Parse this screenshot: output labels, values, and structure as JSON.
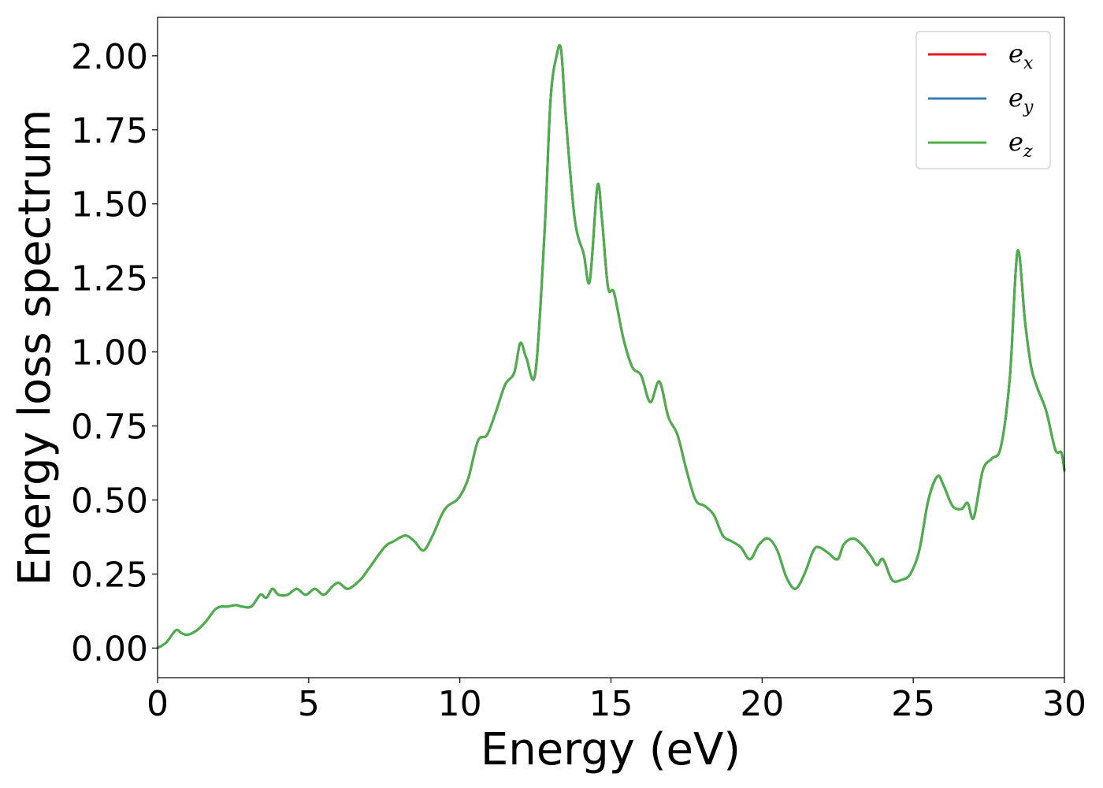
{
  "chart_data": {
    "type": "line",
    "title": "",
    "xlabel": "Energy (eV)",
    "ylabel": "Energy loss spectrum",
    "xlim": [
      0,
      30
    ],
    "ylim": [
      -0.1,
      2.13
    ],
    "xticks": [
      0,
      5,
      10,
      15,
      20,
      25,
      30
    ],
    "yticks": [
      0.0,
      0.25,
      0.5,
      0.75,
      1.0,
      1.25,
      1.5,
      1.75,
      2.0
    ],
    "xtick_labels": [
      "0",
      "5",
      "10",
      "15",
      "20",
      "25",
      "30"
    ],
    "ytick_labels": [
      "0.00",
      "0.25",
      "0.50",
      "0.75",
      "1.00",
      "1.25",
      "1.50",
      "1.75",
      "2.00"
    ],
    "grid": false,
    "legend_position": "top-right",
    "legend_entries": [
      {
        "base": "e",
        "sub": "x",
        "color": "#e41a1c"
      },
      {
        "base": "e",
        "sub": "y",
        "color": "#377eb8"
      },
      {
        "base": "e",
        "sub": "z",
        "color": "#4daf4a"
      }
    ],
    "x": [
      0,
      0.3,
      0.6,
      0.8,
      1.0,
      1.3,
      1.6,
      1.9,
      2.1,
      2.3,
      2.6,
      2.8,
      3.1,
      3.4,
      3.6,
      3.8,
      4.0,
      4.3,
      4.6,
      4.9,
      5.2,
      5.5,
      5.8,
      6.0,
      6.3,
      6.7,
      7.0,
      7.5,
      7.8,
      8.2,
      8.5,
      8.8,
      9.1,
      9.4,
      9.6,
      9.9,
      10.1,
      10.3,
      10.6,
      10.9,
      11.2,
      11.5,
      11.8,
      12.0,
      12.2,
      12.5,
      12.8,
      13.0,
      13.2,
      13.35,
      13.5,
      13.8,
      14.1,
      14.3,
      14.55,
      14.7,
      14.9,
      15.1,
      15.4,
      15.7,
      16.0,
      16.3,
      16.6,
      16.9,
      17.2,
      17.5,
      17.8,
      18.1,
      18.4,
      18.7,
      19.0,
      19.3,
      19.6,
      19.9,
      20.2,
      20.5,
      20.8,
      21.1,
      21.4,
      21.7,
      21.9,
      22.2,
      22.5,
      22.7,
      23.0,
      23.3,
      23.6,
      23.8,
      24.0,
      24.3,
      24.6,
      24.9,
      25.2,
      25.5,
      25.8,
      26.0,
      26.3,
      26.6,
      26.8,
      27.0,
      27.3,
      27.6,
      27.9,
      28.2,
      28.45,
      28.7,
      28.9,
      29.1,
      29.4,
      29.7,
      29.9,
      30.0
    ],
    "series": [
      {
        "name": "e_x",
        "color": "#e41a1c",
        "values": [
          0.0,
          0.02,
          0.06,
          0.05,
          0.045,
          0.06,
          0.09,
          0.13,
          0.14,
          0.14,
          0.145,
          0.14,
          0.14,
          0.18,
          0.17,
          0.2,
          0.18,
          0.18,
          0.2,
          0.18,
          0.2,
          0.18,
          0.21,
          0.22,
          0.2,
          0.23,
          0.27,
          0.34,
          0.36,
          0.38,
          0.36,
          0.33,
          0.38,
          0.45,
          0.48,
          0.5,
          0.53,
          0.58,
          0.7,
          0.72,
          0.8,
          0.89,
          0.93,
          1.03,
          0.98,
          0.93,
          1.4,
          1.85,
          2.0,
          2.02,
          1.8,
          1.45,
          1.33,
          1.24,
          1.56,
          1.45,
          1.22,
          1.2,
          1.05,
          0.95,
          0.92,
          0.83,
          0.9,
          0.78,
          0.72,
          0.6,
          0.5,
          0.48,
          0.45,
          0.38,
          0.36,
          0.34,
          0.3,
          0.35,
          0.37,
          0.33,
          0.24,
          0.2,
          0.25,
          0.33,
          0.34,
          0.32,
          0.3,
          0.35,
          0.37,
          0.35,
          0.31,
          0.28,
          0.3,
          0.23,
          0.23,
          0.25,
          0.33,
          0.5,
          0.58,
          0.55,
          0.48,
          0.47,
          0.49,
          0.44,
          0.6,
          0.64,
          0.68,
          0.92,
          1.34,
          1.1,
          0.95,
          0.88,
          0.8,
          0.67,
          0.66,
          0.6
        ]
      },
      {
        "name": "e_y",
        "color": "#377eb8",
        "values": [
          0.0,
          0.02,
          0.06,
          0.05,
          0.045,
          0.06,
          0.09,
          0.13,
          0.14,
          0.14,
          0.145,
          0.14,
          0.14,
          0.18,
          0.17,
          0.2,
          0.18,
          0.18,
          0.2,
          0.18,
          0.2,
          0.18,
          0.21,
          0.22,
          0.2,
          0.23,
          0.27,
          0.34,
          0.36,
          0.38,
          0.36,
          0.33,
          0.38,
          0.45,
          0.48,
          0.5,
          0.53,
          0.58,
          0.7,
          0.72,
          0.8,
          0.89,
          0.93,
          1.03,
          0.98,
          0.93,
          1.4,
          1.85,
          2.0,
          2.02,
          1.8,
          1.45,
          1.33,
          1.24,
          1.56,
          1.45,
          1.22,
          1.2,
          1.05,
          0.95,
          0.92,
          0.83,
          0.9,
          0.78,
          0.72,
          0.6,
          0.5,
          0.48,
          0.45,
          0.38,
          0.36,
          0.34,
          0.3,
          0.35,
          0.37,
          0.33,
          0.24,
          0.2,
          0.25,
          0.33,
          0.34,
          0.32,
          0.3,
          0.35,
          0.37,
          0.35,
          0.31,
          0.28,
          0.3,
          0.23,
          0.23,
          0.25,
          0.33,
          0.5,
          0.58,
          0.55,
          0.48,
          0.47,
          0.49,
          0.44,
          0.6,
          0.64,
          0.68,
          0.92,
          1.34,
          1.1,
          0.95,
          0.88,
          0.8,
          0.67,
          0.66,
          0.6
        ]
      },
      {
        "name": "e_z",
        "color": "#4daf4a",
        "values": [
          0.0,
          0.02,
          0.06,
          0.05,
          0.045,
          0.06,
          0.09,
          0.13,
          0.14,
          0.14,
          0.145,
          0.14,
          0.14,
          0.18,
          0.17,
          0.2,
          0.18,
          0.18,
          0.2,
          0.18,
          0.2,
          0.18,
          0.21,
          0.22,
          0.2,
          0.23,
          0.27,
          0.34,
          0.36,
          0.38,
          0.36,
          0.33,
          0.38,
          0.45,
          0.48,
          0.5,
          0.53,
          0.58,
          0.7,
          0.72,
          0.8,
          0.89,
          0.93,
          1.03,
          0.98,
          0.93,
          1.4,
          1.85,
          2.0,
          2.02,
          1.8,
          1.45,
          1.33,
          1.24,
          1.56,
          1.45,
          1.22,
          1.2,
          1.05,
          0.95,
          0.92,
          0.83,
          0.9,
          0.78,
          0.72,
          0.6,
          0.5,
          0.48,
          0.45,
          0.38,
          0.36,
          0.34,
          0.3,
          0.35,
          0.37,
          0.33,
          0.24,
          0.2,
          0.25,
          0.33,
          0.34,
          0.32,
          0.3,
          0.35,
          0.37,
          0.35,
          0.31,
          0.28,
          0.3,
          0.23,
          0.23,
          0.25,
          0.33,
          0.5,
          0.58,
          0.55,
          0.48,
          0.47,
          0.49,
          0.44,
          0.6,
          0.64,
          0.68,
          0.92,
          1.34,
          1.1,
          0.95,
          0.88,
          0.8,
          0.67,
          0.66,
          0.6
        ]
      }
    ]
  }
}
